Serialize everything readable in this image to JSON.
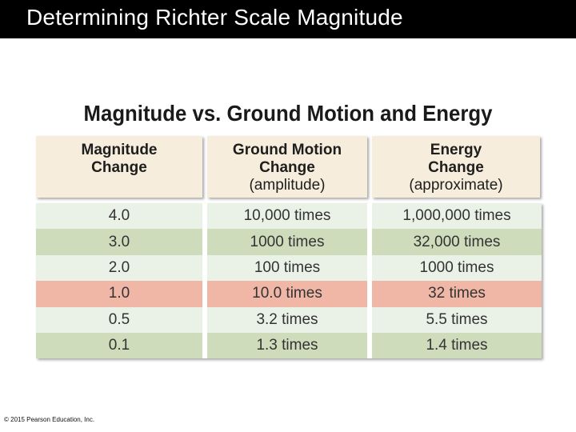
{
  "slide": {
    "title": "Determining Richter Scale Magnitude",
    "copyright": "© 2015 Pearson Education, Inc."
  },
  "table": {
    "title": "Magnitude vs. Ground Motion and Energy",
    "headers": [
      {
        "line1": "Magnitude",
        "line2": "Change",
        "line3": ""
      },
      {
        "line1": "Ground Motion",
        "line2": "Change",
        "line3": "(amplitude)"
      },
      {
        "line1": "Energy",
        "line2": "Change",
        "line3": "(approximate)"
      }
    ],
    "rows": [
      {
        "magnitude": "4.0",
        "ground_motion": "10,000 times",
        "energy": "1,000,000 times",
        "bg": "#eaf1e6"
      },
      {
        "magnitude": "3.0",
        "ground_motion": "1000 times",
        "energy": "32,000 times",
        "bg": "#cfdcbc"
      },
      {
        "magnitude": "2.0",
        "ground_motion": "100 times",
        "energy": "1000 times",
        "bg": "#eaf1e6"
      },
      {
        "magnitude": "1.0",
        "ground_motion": "10.0 times",
        "energy": "32 times",
        "bg": "#f0b7a7"
      },
      {
        "magnitude": "0.5",
        "ground_motion": "3.2 times",
        "energy": "5.5 times",
        "bg": "#eaf1e6"
      },
      {
        "magnitude": "0.1",
        "ground_motion": "1.3 times",
        "energy": "1.4 times",
        "bg": "#cfdcbc"
      }
    ]
  }
}
